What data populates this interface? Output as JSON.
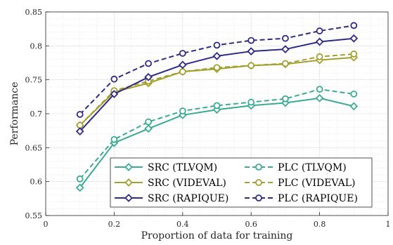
{
  "chart_data": {
    "type": "line",
    "title": "",
    "xlabel": "Proportion of data for training",
    "ylabel": "Performance",
    "xlim": [
      0,
      1
    ],
    "ylim": [
      0.55,
      0.85
    ],
    "xticks": [
      0,
      0.2,
      0.4,
      0.6,
      0.8,
      1
    ],
    "xtick_labels": [
      "0",
      "0.2",
      "0.4",
      "0.6",
      "0.8",
      "1"
    ],
    "yticks": [
      0.55,
      0.6,
      0.65,
      0.7,
      0.75,
      0.8,
      0.85
    ],
    "ytick_labels": [
      "0.55",
      "0.6",
      "0.65",
      "0.7",
      "0.75",
      "0.8",
      "0.85"
    ],
    "grid": true,
    "minor_grid": true,
    "legend_position": "bottom-right",
    "x": [
      0.1,
      0.2,
      0.3,
      0.4,
      0.5,
      0.6,
      0.7,
      0.8,
      0.9
    ],
    "series": [
      {
        "name": "SRC (TLVQM)",
        "color": "#3aaa94",
        "marker": "diamond",
        "dashed": false,
        "values": [
          0.591,
          0.657,
          0.678,
          0.698,
          0.706,
          0.712,
          0.716,
          0.723,
          0.711
        ]
      },
      {
        "name": "PLC (TLVQM)",
        "color": "#3aaa94",
        "marker": "circle",
        "dashed": true,
        "values": [
          0.604,
          0.662,
          0.688,
          0.704,
          0.712,
          0.717,
          0.722,
          0.736,
          0.729
        ]
      },
      {
        "name": "SRC (VIDEVAL)",
        "color": "#a2a02e",
        "marker": "diamond",
        "dashed": false,
        "values": [
          0.683,
          0.732,
          0.745,
          0.762,
          0.766,
          0.771,
          0.773,
          0.779,
          0.783
        ]
      },
      {
        "name": "PLC (VIDEVAL)",
        "color": "#a2a02e",
        "marker": "circle",
        "dashed": true,
        "values": [
          0.683,
          0.734,
          0.748,
          0.762,
          0.768,
          0.771,
          0.774,
          0.784,
          0.788
        ]
      },
      {
        "name": "SRC (RAPIQUE)",
        "color": "#2f2a86",
        "marker": "diamond",
        "dashed": false,
        "values": [
          0.674,
          0.729,
          0.754,
          0.772,
          0.785,
          0.792,
          0.795,
          0.806,
          0.811
        ]
      },
      {
        "name": "PLC (RAPIQUE)",
        "color": "#2f2a86",
        "marker": "circle",
        "dashed": true,
        "values": [
          0.699,
          0.751,
          0.774,
          0.789,
          0.801,
          0.808,
          0.811,
          0.822,
          0.83
        ]
      }
    ]
  }
}
